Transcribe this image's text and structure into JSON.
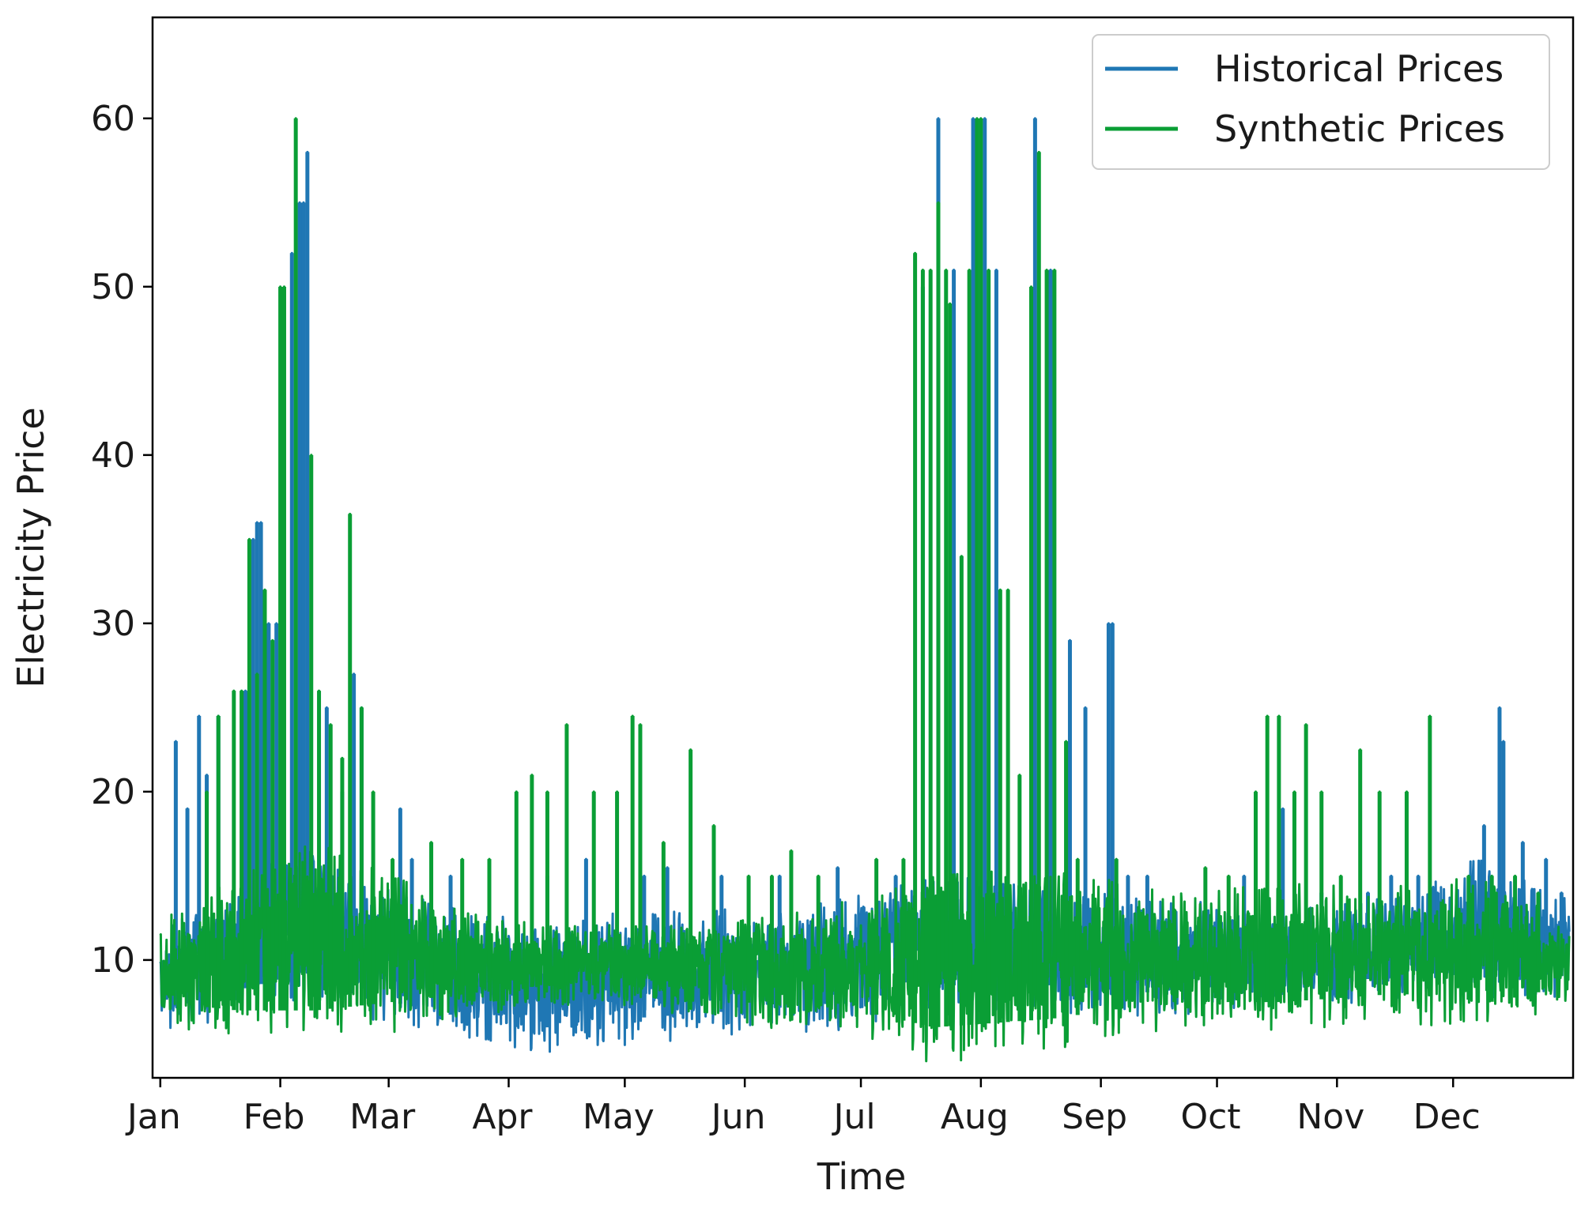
{
  "chart_data": {
    "type": "line",
    "title": "",
    "xlabel": "Time",
    "ylabel": "Electricity Price",
    "xlim": [
      -2,
      365
    ],
    "ylim": [
      3,
      66
    ],
    "grid": false,
    "legend_position": "top-right",
    "x_ticks": [
      {
        "label": "Jan",
        "day": 0
      },
      {
        "label": "Feb",
        "day": 31
      },
      {
        "label": "Mar",
        "day": 59
      },
      {
        "label": "Apr",
        "day": 90
      },
      {
        "label": "May",
        "day": 120
      },
      {
        "label": "Jun",
        "day": 151
      },
      {
        "label": "Jul",
        "day": 181
      },
      {
        "label": "Aug",
        "day": 212
      },
      {
        "label": "Sep",
        "day": 243
      },
      {
        "label": "Oct",
        "day": 273
      },
      {
        "label": "Nov",
        "day": 304
      },
      {
        "label": "Dec",
        "day": 334
      }
    ],
    "y_ticks": [
      {
        "label": "10",
        "value": 10
      },
      {
        "label": "20",
        "value": 20
      },
      {
        "label": "30",
        "value": 30
      },
      {
        "label": "40",
        "value": 40
      },
      {
        "label": "50",
        "value": 50
      },
      {
        "label": "60",
        "value": 60
      }
    ],
    "series": [
      {
        "name": "Historical Prices",
        "color": "#1f77b4",
        "baseline": [
          {
            "x": 0,
            "low": 6.5,
            "high": 11.0
          },
          {
            "x": 25,
            "low": 8.0,
            "high": 14.5
          },
          {
            "x": 40,
            "low": 9.0,
            "high": 16.0
          },
          {
            "x": 60,
            "low": 7.0,
            "high": 13.0
          },
          {
            "x": 80,
            "low": 6.0,
            "high": 12.0
          },
          {
            "x": 100,
            "low": 5.5,
            "high": 11.0
          },
          {
            "x": 120,
            "low": 6.0,
            "high": 12.0
          },
          {
            "x": 150,
            "low": 6.5,
            "high": 12.0
          },
          {
            "x": 180,
            "low": 7.0,
            "high": 13.0
          },
          {
            "x": 200,
            "low": 8.0,
            "high": 14.0
          },
          {
            "x": 230,
            "low": 8.0,
            "high": 14.0
          },
          {
            "x": 260,
            "low": 7.5,
            "high": 12.5
          },
          {
            "x": 290,
            "low": 8.0,
            "high": 12.5
          },
          {
            "x": 320,
            "low": 8.5,
            "high": 13.0
          },
          {
            "x": 340,
            "low": 9.0,
            "high": 15.0
          },
          {
            "x": 364,
            "low": 8.5,
            "high": 13.0
          }
        ],
        "spikes": [
          {
            "x": 4,
            "y": 23
          },
          {
            "x": 7,
            "y": 19
          },
          {
            "x": 10,
            "y": 24.5
          },
          {
            "x": 12,
            "y": 21
          },
          {
            "x": 15,
            "y": 24.5
          },
          {
            "x": 22,
            "y": 26
          },
          {
            "x": 24,
            "y": 35
          },
          {
            "x": 25,
            "y": 36
          },
          {
            "x": 26,
            "y": 36
          },
          {
            "x": 28,
            "y": 30
          },
          {
            "x": 30,
            "y": 30
          },
          {
            "x": 34,
            "y": 52
          },
          {
            "x": 36,
            "y": 55
          },
          {
            "x": 37,
            "y": 55
          },
          {
            "x": 38,
            "y": 58
          },
          {
            "x": 43,
            "y": 25
          },
          {
            "x": 47,
            "y": 20
          },
          {
            "x": 50,
            "y": 27
          },
          {
            "x": 52,
            "y": 25
          },
          {
            "x": 62,
            "y": 19
          },
          {
            "x": 65,
            "y": 16
          },
          {
            "x": 75,
            "y": 15
          },
          {
            "x": 100,
            "y": 15
          },
          {
            "x": 110,
            "y": 16
          },
          {
            "x": 125,
            "y": 15
          },
          {
            "x": 131,
            "y": 15.5
          },
          {
            "x": 145,
            "y": 15
          },
          {
            "x": 160,
            "y": 15
          },
          {
            "x": 175,
            "y": 15.5
          },
          {
            "x": 190,
            "y": 15
          },
          {
            "x": 197,
            "y": 50
          },
          {
            "x": 201,
            "y": 60
          },
          {
            "x": 205,
            "y": 51
          },
          {
            "x": 210,
            "y": 60
          },
          {
            "x": 213,
            "y": 60
          },
          {
            "x": 216,
            "y": 51
          },
          {
            "x": 226,
            "y": 60
          },
          {
            "x": 230,
            "y": 51
          },
          {
            "x": 235,
            "y": 29
          },
          {
            "x": 239,
            "y": 25
          },
          {
            "x": 245,
            "y": 30
          },
          {
            "x": 246,
            "y": 30
          },
          {
            "x": 250,
            "y": 15
          },
          {
            "x": 255,
            "y": 15
          },
          {
            "x": 265,
            "y": 12
          },
          {
            "x": 280,
            "y": 15
          },
          {
            "x": 290,
            "y": 19
          },
          {
            "x": 300,
            "y": 14
          },
          {
            "x": 312,
            "y": 14
          },
          {
            "x": 318,
            "y": 15
          },
          {
            "x": 325,
            "y": 15
          },
          {
            "x": 330,
            "y": 14
          },
          {
            "x": 342,
            "y": 18
          },
          {
            "x": 346,
            "y": 25
          },
          {
            "x": 347,
            "y": 23
          },
          {
            "x": 352,
            "y": 17
          },
          {
            "x": 358,
            "y": 16
          },
          {
            "x": 362,
            "y": 14
          }
        ]
      },
      {
        "name": "Synthetic Prices",
        "color": "#0a9e35",
        "baseline": [
          {
            "x": 0,
            "low": 7.0,
            "high": 11.5
          },
          {
            "x": 20,
            "low": 6.5,
            "high": 14.0
          },
          {
            "x": 40,
            "low": 6.5,
            "high": 16.0
          },
          {
            "x": 60,
            "low": 7.0,
            "high": 14.0
          },
          {
            "x": 80,
            "low": 7.5,
            "high": 12.0
          },
          {
            "x": 100,
            "low": 8.0,
            "high": 11.5
          },
          {
            "x": 120,
            "low": 8.0,
            "high": 11.5
          },
          {
            "x": 150,
            "low": 7.0,
            "high": 12.0
          },
          {
            "x": 180,
            "low": 6.5,
            "high": 12.5
          },
          {
            "x": 200,
            "low": 5.5,
            "high": 14.0
          },
          {
            "x": 230,
            "low": 6.0,
            "high": 14.5
          },
          {
            "x": 260,
            "low": 7.0,
            "high": 13.0
          },
          {
            "x": 290,
            "low": 7.0,
            "high": 13.5
          },
          {
            "x": 320,
            "low": 7.5,
            "high": 13.5
          },
          {
            "x": 345,
            "low": 7.0,
            "high": 14.0
          },
          {
            "x": 364,
            "low": 8.0,
            "high": 11.0
          }
        ],
        "spikes": [
          {
            "x": 8,
            "y": 11
          },
          {
            "x": 12,
            "y": 20
          },
          {
            "x": 15,
            "y": 24.5
          },
          {
            "x": 19,
            "y": 26
          },
          {
            "x": 21,
            "y": 26
          },
          {
            "x": 23,
            "y": 35
          },
          {
            "x": 25,
            "y": 27
          },
          {
            "x": 27,
            "y": 32
          },
          {
            "x": 29,
            "y": 29
          },
          {
            "x": 31,
            "y": 50
          },
          {
            "x": 32,
            "y": 50
          },
          {
            "x": 35,
            "y": 60
          },
          {
            "x": 39,
            "y": 40
          },
          {
            "x": 41,
            "y": 26
          },
          {
            "x": 44,
            "y": 24
          },
          {
            "x": 47,
            "y": 22
          },
          {
            "x": 49,
            "y": 36.5
          },
          {
            "x": 52,
            "y": 25
          },
          {
            "x": 55,
            "y": 20
          },
          {
            "x": 60,
            "y": 16
          },
          {
            "x": 70,
            "y": 17
          },
          {
            "x": 78,
            "y": 16
          },
          {
            "x": 85,
            "y": 16
          },
          {
            "x": 92,
            "y": 20
          },
          {
            "x": 96,
            "y": 21
          },
          {
            "x": 100,
            "y": 20
          },
          {
            "x": 105,
            "y": 24
          },
          {
            "x": 112,
            "y": 20
          },
          {
            "x": 118,
            "y": 20
          },
          {
            "x": 122,
            "y": 24.5
          },
          {
            "x": 124,
            "y": 24
          },
          {
            "x": 130,
            "y": 17
          },
          {
            "x": 137,
            "y": 22.5
          },
          {
            "x": 143,
            "y": 18
          },
          {
            "x": 152,
            "y": 15
          },
          {
            "x": 158,
            "y": 15
          },
          {
            "x": 163,
            "y": 16.5
          },
          {
            "x": 170,
            "y": 15
          },
          {
            "x": 185,
            "y": 16
          },
          {
            "x": 192,
            "y": 16
          },
          {
            "x": 195,
            "y": 52
          },
          {
            "x": 197,
            "y": 51
          },
          {
            "x": 199,
            "y": 51
          },
          {
            "x": 201,
            "y": 55
          },
          {
            "x": 203,
            "y": 51
          },
          {
            "x": 204,
            "y": 49
          },
          {
            "x": 207,
            "y": 34
          },
          {
            "x": 209,
            "y": 51
          },
          {
            "x": 211,
            "y": 60
          },
          {
            "x": 212,
            "y": 60
          },
          {
            "x": 214,
            "y": 51
          },
          {
            "x": 217,
            "y": 32
          },
          {
            "x": 219,
            "y": 32
          },
          {
            "x": 222,
            "y": 21
          },
          {
            "x": 225,
            "y": 50
          },
          {
            "x": 227,
            "y": 58
          },
          {
            "x": 229,
            "y": 51
          },
          {
            "x": 231,
            "y": 51
          },
          {
            "x": 234,
            "y": 23
          },
          {
            "x": 237,
            "y": 16
          },
          {
            "x": 247,
            "y": 16
          },
          {
            "x": 262,
            "y": 13
          },
          {
            "x": 270,
            "y": 15.5
          },
          {
            "x": 276,
            "y": 15
          },
          {
            "x": 283,
            "y": 20
          },
          {
            "x": 286,
            "y": 24.5
          },
          {
            "x": 289,
            "y": 24.5
          },
          {
            "x": 293,
            "y": 20
          },
          {
            "x": 296,
            "y": 24
          },
          {
            "x": 300,
            "y": 20
          },
          {
            "x": 305,
            "y": 15
          },
          {
            "x": 310,
            "y": 22.5
          },
          {
            "x": 315,
            "y": 20
          },
          {
            "x": 322,
            "y": 20
          },
          {
            "x": 328,
            "y": 24.5
          },
          {
            "x": 338,
            "y": 15
          },
          {
            "x": 344,
            "y": 15
          },
          {
            "x": 350,
            "y": 15
          },
          {
            "x": 356,
            "y": 14
          }
        ]
      }
    ]
  }
}
